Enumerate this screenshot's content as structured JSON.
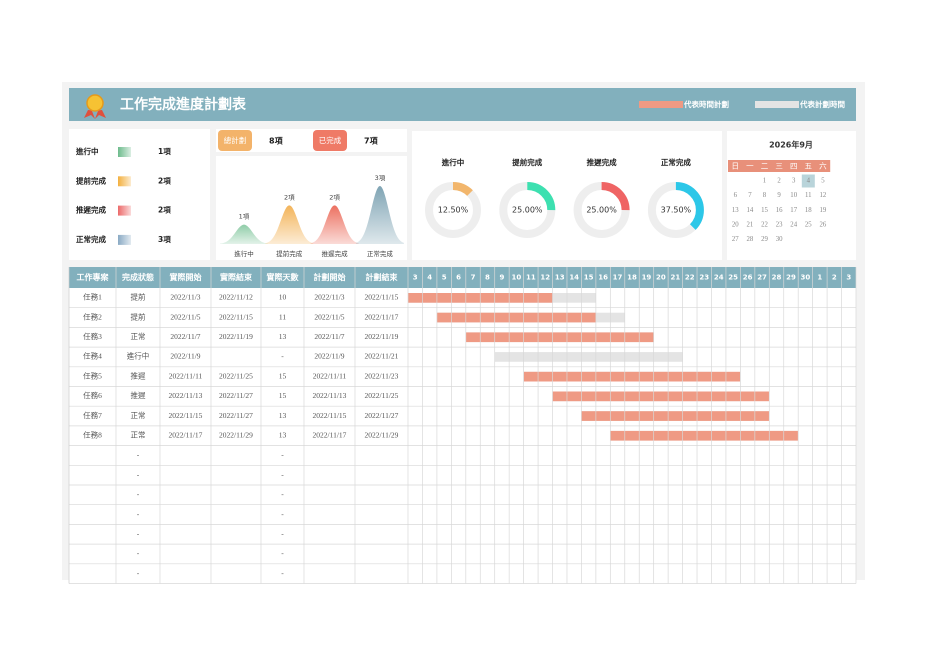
{
  "header": {
    "title": "工作完成進度計劃表",
    "legend": [
      {
        "label": "代表時間計劃",
        "color": "#ef9a84"
      },
      {
        "label": "代表計劃時間",
        "color": "#e4e4e4"
      }
    ]
  },
  "status_legend": [
    {
      "name": "進行中",
      "count": "1項",
      "color": "#6dbb8c"
    },
    {
      "name": "提前完成",
      "count": "2項",
      "color": "#f3b03f"
    },
    {
      "name": "推遲完成",
      "count": "2項",
      "color": "#ec6a6a"
    },
    {
      "name": "正常完成",
      "count": "3項",
      "color": "#8aaac4"
    }
  ],
  "totals": [
    {
      "label": "總計劃",
      "value": "8項",
      "color": "#f3b36a"
    },
    {
      "label": "已完成",
      "value": "7項",
      "color": "#ef7a66"
    }
  ],
  "chart_data": [
    {
      "type": "bell",
      "categories": [
        "進行中",
        "提前完成",
        "推遲完成",
        "正常完成"
      ],
      "values": [
        1,
        2,
        2,
        3
      ],
      "value_labels": [
        "1項",
        "2項",
        "2項",
        "3項"
      ],
      "colors": [
        "#8fcca8",
        "#f3b45a",
        "#ec7060",
        "#7fa4b4"
      ]
    },
    {
      "type": "donut",
      "categories": [
        "進行中",
        "提前完成",
        "推遲完成",
        "正常完成"
      ],
      "values": [
        12.5,
        25,
        25,
        37.5
      ],
      "value_labels": [
        "12.50%",
        "25.00%",
        "25.00%",
        "37.50%"
      ],
      "colors": [
        "#f2b66c",
        "#3de0b0",
        "#ef6464",
        "#2cc7e8"
      ]
    }
  ],
  "calendar": {
    "title": "2026年9月",
    "weekdays": [
      "日",
      "一",
      "二",
      "三",
      "四",
      "五",
      "六"
    ],
    "selected_day": 4,
    "weeks": [
      [
        null,
        null,
        1,
        2,
        3,
        4,
        5
      ],
      [
        6,
        7,
        8,
        9,
        10,
        11,
        12
      ],
      [
        13,
        14,
        15,
        16,
        17,
        18,
        19
      ],
      [
        20,
        21,
        22,
        23,
        24,
        25,
        26
      ],
      [
        27,
        28,
        29,
        30,
        null,
        null,
        null
      ]
    ]
  },
  "table": {
    "columns": [
      "工作專案",
      "完成狀態",
      "實際開始",
      "實際結束",
      "實際天數",
      "計劃開始",
      "計劃結束"
    ],
    "day_headers": [
      3,
      4,
      5,
      6,
      7,
      8,
      9,
      10,
      11,
      12,
      13,
      14,
      15,
      16,
      17,
      18,
      19,
      20,
      21,
      22,
      23,
      24,
      25,
      26,
      27,
      28,
      29,
      30,
      1,
      2,
      3
    ],
    "rows": [
      [
        "任務1",
        "提前",
        "2022/11/3",
        "2022/11/12",
        "10",
        "2022/11/3",
        "2022/11/15"
      ],
      [
        "任務2",
        "提前",
        "2022/11/5",
        "2022/11/15",
        "11",
        "2022/11/5",
        "2022/11/17"
      ],
      [
        "任務3",
        "正常",
        "2022/11/7",
        "2022/11/19",
        "13",
        "2022/11/7",
        "2022/11/19"
      ],
      [
        "任務4",
        "進行中",
        "2022/11/9",
        null,
        "-",
        "2022/11/9",
        "2022/11/21"
      ],
      [
        "任務5",
        "推遲",
        "2022/11/11",
        "2022/11/25",
        "15",
        "2022/11/11",
        "2022/11/23"
      ],
      [
        "任務6",
        "推遲",
        "2022/11/13",
        "2022/11/27",
        "15",
        "2022/11/13",
        "2022/11/25"
      ],
      [
        "任務7",
        "正常",
        "2022/11/15",
        "2022/11/27",
        "13",
        "2022/11/15",
        "2022/11/27"
      ],
      [
        "任務8",
        "正常",
        "2022/11/17",
        "2022/11/29",
        "13",
        "2022/11/17",
        "2022/11/29"
      ],
      [
        null,
        "-",
        null,
        null,
        "-",
        null,
        null
      ],
      [
        null,
        "-",
        null,
        null,
        "-",
        null,
        null
      ],
      [
        null,
        "-",
        null,
        null,
        "-",
        null,
        null
      ],
      [
        null,
        "-",
        null,
        null,
        "-",
        null,
        null
      ],
      [
        null,
        "-",
        null,
        null,
        "-",
        null,
        null
      ],
      [
        null,
        "-",
        null,
        null,
        "-",
        null,
        null
      ],
      [
        null,
        "-",
        null,
        null,
        "-",
        null,
        null
      ]
    ]
  }
}
